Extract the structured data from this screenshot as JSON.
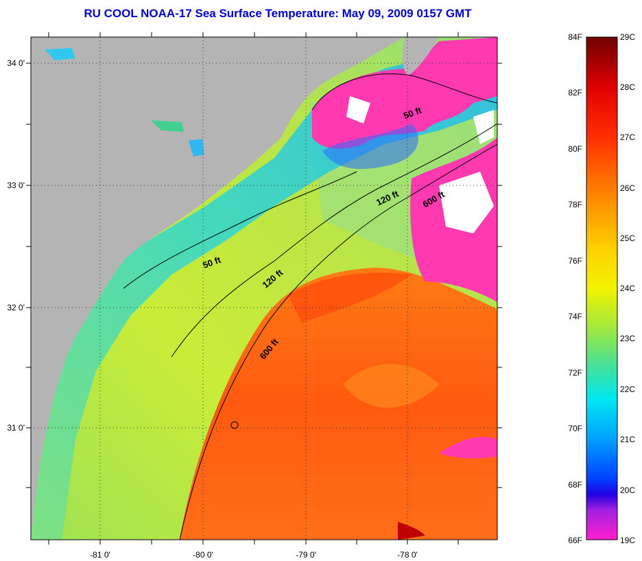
{
  "title": "RU COOL  NOAA-17  Sea Surface Temperature:  May 09, 2009 0157 GMT",
  "map": {
    "lat_ticks": [
      "34 0'",
      "33 0'",
      "32 0'",
      "31 0'"
    ],
    "lon_ticks": [
      "-81 0'",
      "-80 0'",
      "-79 0'",
      "-78 0'"
    ],
    "contour_labels": [
      "50 ft",
      "120 ft",
      "600 ft",
      "50 ft",
      "120 ft",
      "600 ft"
    ],
    "colors": {
      "land": "#b4b4b4",
      "cloud": "#ff3ab0",
      "warm": "#ff6a10",
      "coastal": "#33dcc8",
      "shelf": "#b6e83a"
    }
  },
  "colorbar": {
    "f_labels": [
      "84F",
      "82F",
      "80F",
      "78F",
      "76F",
      "74F",
      "72F",
      "70F",
      "68F",
      "66F"
    ],
    "c_labels": [
      "29C",
      "28C",
      "27C",
      "26C",
      "25C",
      "24C",
      "23C",
      "22C",
      "21C",
      "20C",
      "19C"
    ]
  }
}
